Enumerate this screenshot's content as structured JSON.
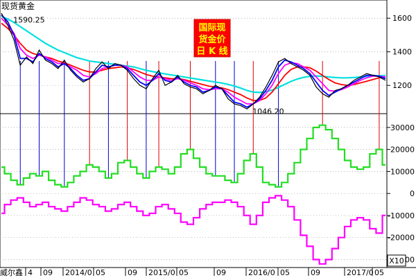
{
  "chart_data": [
    {
      "type": "line",
      "title": "现货黄金",
      "overlay_label": [
        "国际现",
        "货金价",
        "日 K 线"
      ],
      "x_tick_labels": [
        "4",
        "09",
        "2014/0",
        "05",
        "09",
        "2015/0",
        "05",
        "09",
        "2016/0",
        "05",
        "09",
        "2017/0",
        "05"
      ],
      "ylim": [
        1040,
        1700
      ],
      "y_ticks": [
        1200,
        1400,
        1600
      ],
      "annotations": [
        {
          "label": "1590.25",
          "value": 1590.25
        },
        {
          "label": "1046.20",
          "value": 1046.2
        }
      ],
      "series": [
        {
          "color": "#000000",
          "values": [
            1630,
            1560,
            1470,
            1320,
            1370,
            1330,
            1410,
            1350,
            1330,
            1300,
            1350,
            1290,
            1250,
            1220,
            1240,
            1300,
            1340,
            1300,
            1330,
            1320,
            1290,
            1240,
            1200,
            1180,
            1240,
            1290,
            1200,
            1220,
            1260,
            1210,
            1190,
            1180,
            1150,
            1170,
            1200,
            1180,
            1120,
            1090,
            1080,
            1060,
            1090,
            1130,
            1190,
            1260,
            1340,
            1360,
            1330,
            1310,
            1290,
            1260,
            1190,
            1150,
            1130,
            1170,
            1180,
            1200,
            1230,
            1250,
            1270,
            1260,
            1250,
            1230
          ]
        },
        {
          "color": "#0000ff",
          "values": [
            1620,
            1580,
            1500,
            1360,
            1360,
            1340,
            1390,
            1360,
            1340,
            1310,
            1330,
            1300,
            1260,
            1230,
            1240,
            1280,
            1320,
            1310,
            1320,
            1320,
            1300,
            1260,
            1220,
            1200,
            1230,
            1270,
            1230,
            1220,
            1250,
            1220,
            1200,
            1190,
            1160,
            1170,
            1190,
            1180,
            1140,
            1100,
            1090,
            1070,
            1090,
            1120,
            1170,
            1230,
            1310,
            1350,
            1340,
            1320,
            1300,
            1270,
            1220,
            1170,
            1140,
            1160,
            1180,
            1200,
            1220,
            1240,
            1260,
            1260,
            1255,
            1240
          ]
        },
        {
          "color": "#ff00ff",
          "values": [
            1600,
            1560,
            1510,
            1420,
            1380,
            1360,
            1380,
            1370,
            1350,
            1330,
            1330,
            1310,
            1290,
            1260,
            1250,
            1270,
            1300,
            1310,
            1320,
            1320,
            1310,
            1280,
            1250,
            1230,
            1230,
            1250,
            1240,
            1230,
            1240,
            1230,
            1215,
            1200,
            1180,
            1175,
            1180,
            1180,
            1160,
            1130,
            1110,
            1090,
            1090,
            1110,
            1150,
            1200,
            1270,
            1320,
            1335,
            1330,
            1310,
            1290,
            1250,
            1210,
            1170,
            1165,
            1175,
            1190,
            1210,
            1230,
            1245,
            1255,
            1255,
            1250
          ]
        },
        {
          "color": "#ff0000",
          "values": [
            1570,
            1540,
            1500,
            1450,
            1410,
            1390,
            1380,
            1370,
            1360,
            1345,
            1335,
            1320,
            1305,
            1290,
            1280,
            1280,
            1290,
            1300,
            1305,
            1310,
            1305,
            1295,
            1280,
            1265,
            1255,
            1250,
            1245,
            1240,
            1240,
            1235,
            1225,
            1215,
            1205,
            1195,
            1190,
            1185,
            1175,
            1160,
            1145,
            1125,
            1110,
            1110,
            1125,
            1160,
            1210,
            1260,
            1295,
            1310,
            1310,
            1305,
            1285,
            1260,
            1235,
            1215,
            1205,
            1200,
            1205,
            1215,
            1225,
            1235,
            1245,
            1250
          ]
        },
        {
          "color": "#00e0e0",
          "values": [
            1610,
            1595,
            1575,
            1550,
            1525,
            1500,
            1475,
            1450,
            1430,
            1410,
            1395,
            1380,
            1365,
            1355,
            1345,
            1340,
            1335,
            1330,
            1325,
            1320,
            1315,
            1310,
            1300,
            1290,
            1282,
            1275,
            1268,
            1262,
            1256,
            1250,
            1244,
            1238,
            1232,
            1226,
            1220,
            1214,
            1206,
            1196,
            1184,
            1170,
            1160,
            1158,
            1162,
            1172,
            1188,
            1206,
            1224,
            1238,
            1248,
            1254,
            1256,
            1254,
            1250,
            1247,
            1245,
            1245,
            1247,
            1250,
            1253,
            1256,
            1258,
            1258
          ]
        }
      ]
    },
    {
      "type": "line",
      "title": "威尔鑫",
      "unit_label": "X10",
      "ylim": [
        -33000,
        35000
      ],
      "y_ticks": [
        30000,
        20000,
        10000,
        0,
        -10000,
        -20000,
        -30000
      ],
      "y_tick_labels": [
        "30000",
        "20000",
        "10000",
        "0",
        "-10000",
        "-20000",
        "-30000"
      ],
      "series": [
        {
          "color": "#22dd22",
          "values": [
            12000,
            9000,
            6000,
            4000,
            7000,
            9000,
            8000,
            10000,
            6000,
            4000,
            3000,
            5000,
            8000,
            10000,
            13000,
            12000,
            10000,
            7000,
            9000,
            14000,
            15000,
            12000,
            9000,
            7000,
            10000,
            12000,
            11000,
            9000,
            12000,
            18000,
            20000,
            16000,
            12000,
            9000,
            8000,
            8000,
            6000,
            5000,
            9000,
            15000,
            18000,
            12000,
            5000,
            4000,
            3000,
            5000,
            9000,
            14000,
            20000,
            25000,
            30000,
            31000,
            29000,
            25000,
            20000,
            15000,
            12000,
            11000,
            12000,
            18000,
            20000,
            13000
          ]
        },
        {
          "color": "#ff00ff",
          "values": [
            -9000,
            -5000,
            -3000,
            -2000,
            -4000,
            -6000,
            -5000,
            -4000,
            -6000,
            -7000,
            -8000,
            -6000,
            -4000,
            -2000,
            -3000,
            -5000,
            -6000,
            -8000,
            -7000,
            -5000,
            -4000,
            -6000,
            -8000,
            -10000,
            -9000,
            -6000,
            -5000,
            -7000,
            -9000,
            -13000,
            -14000,
            -11000,
            -7000,
            -5000,
            -4000,
            -4000,
            -3000,
            -4000,
            -6000,
            -10000,
            -14000,
            -10000,
            -4000,
            -2000,
            -1000,
            -3000,
            -6000,
            -12000,
            -19000,
            -24000,
            -30000,
            -32000,
            -30000,
            -25000,
            -20000,
            -15000,
            -12000,
            -11000,
            -12000,
            -16000,
            -18000,
            -10000
          ]
        }
      ]
    }
  ]
}
